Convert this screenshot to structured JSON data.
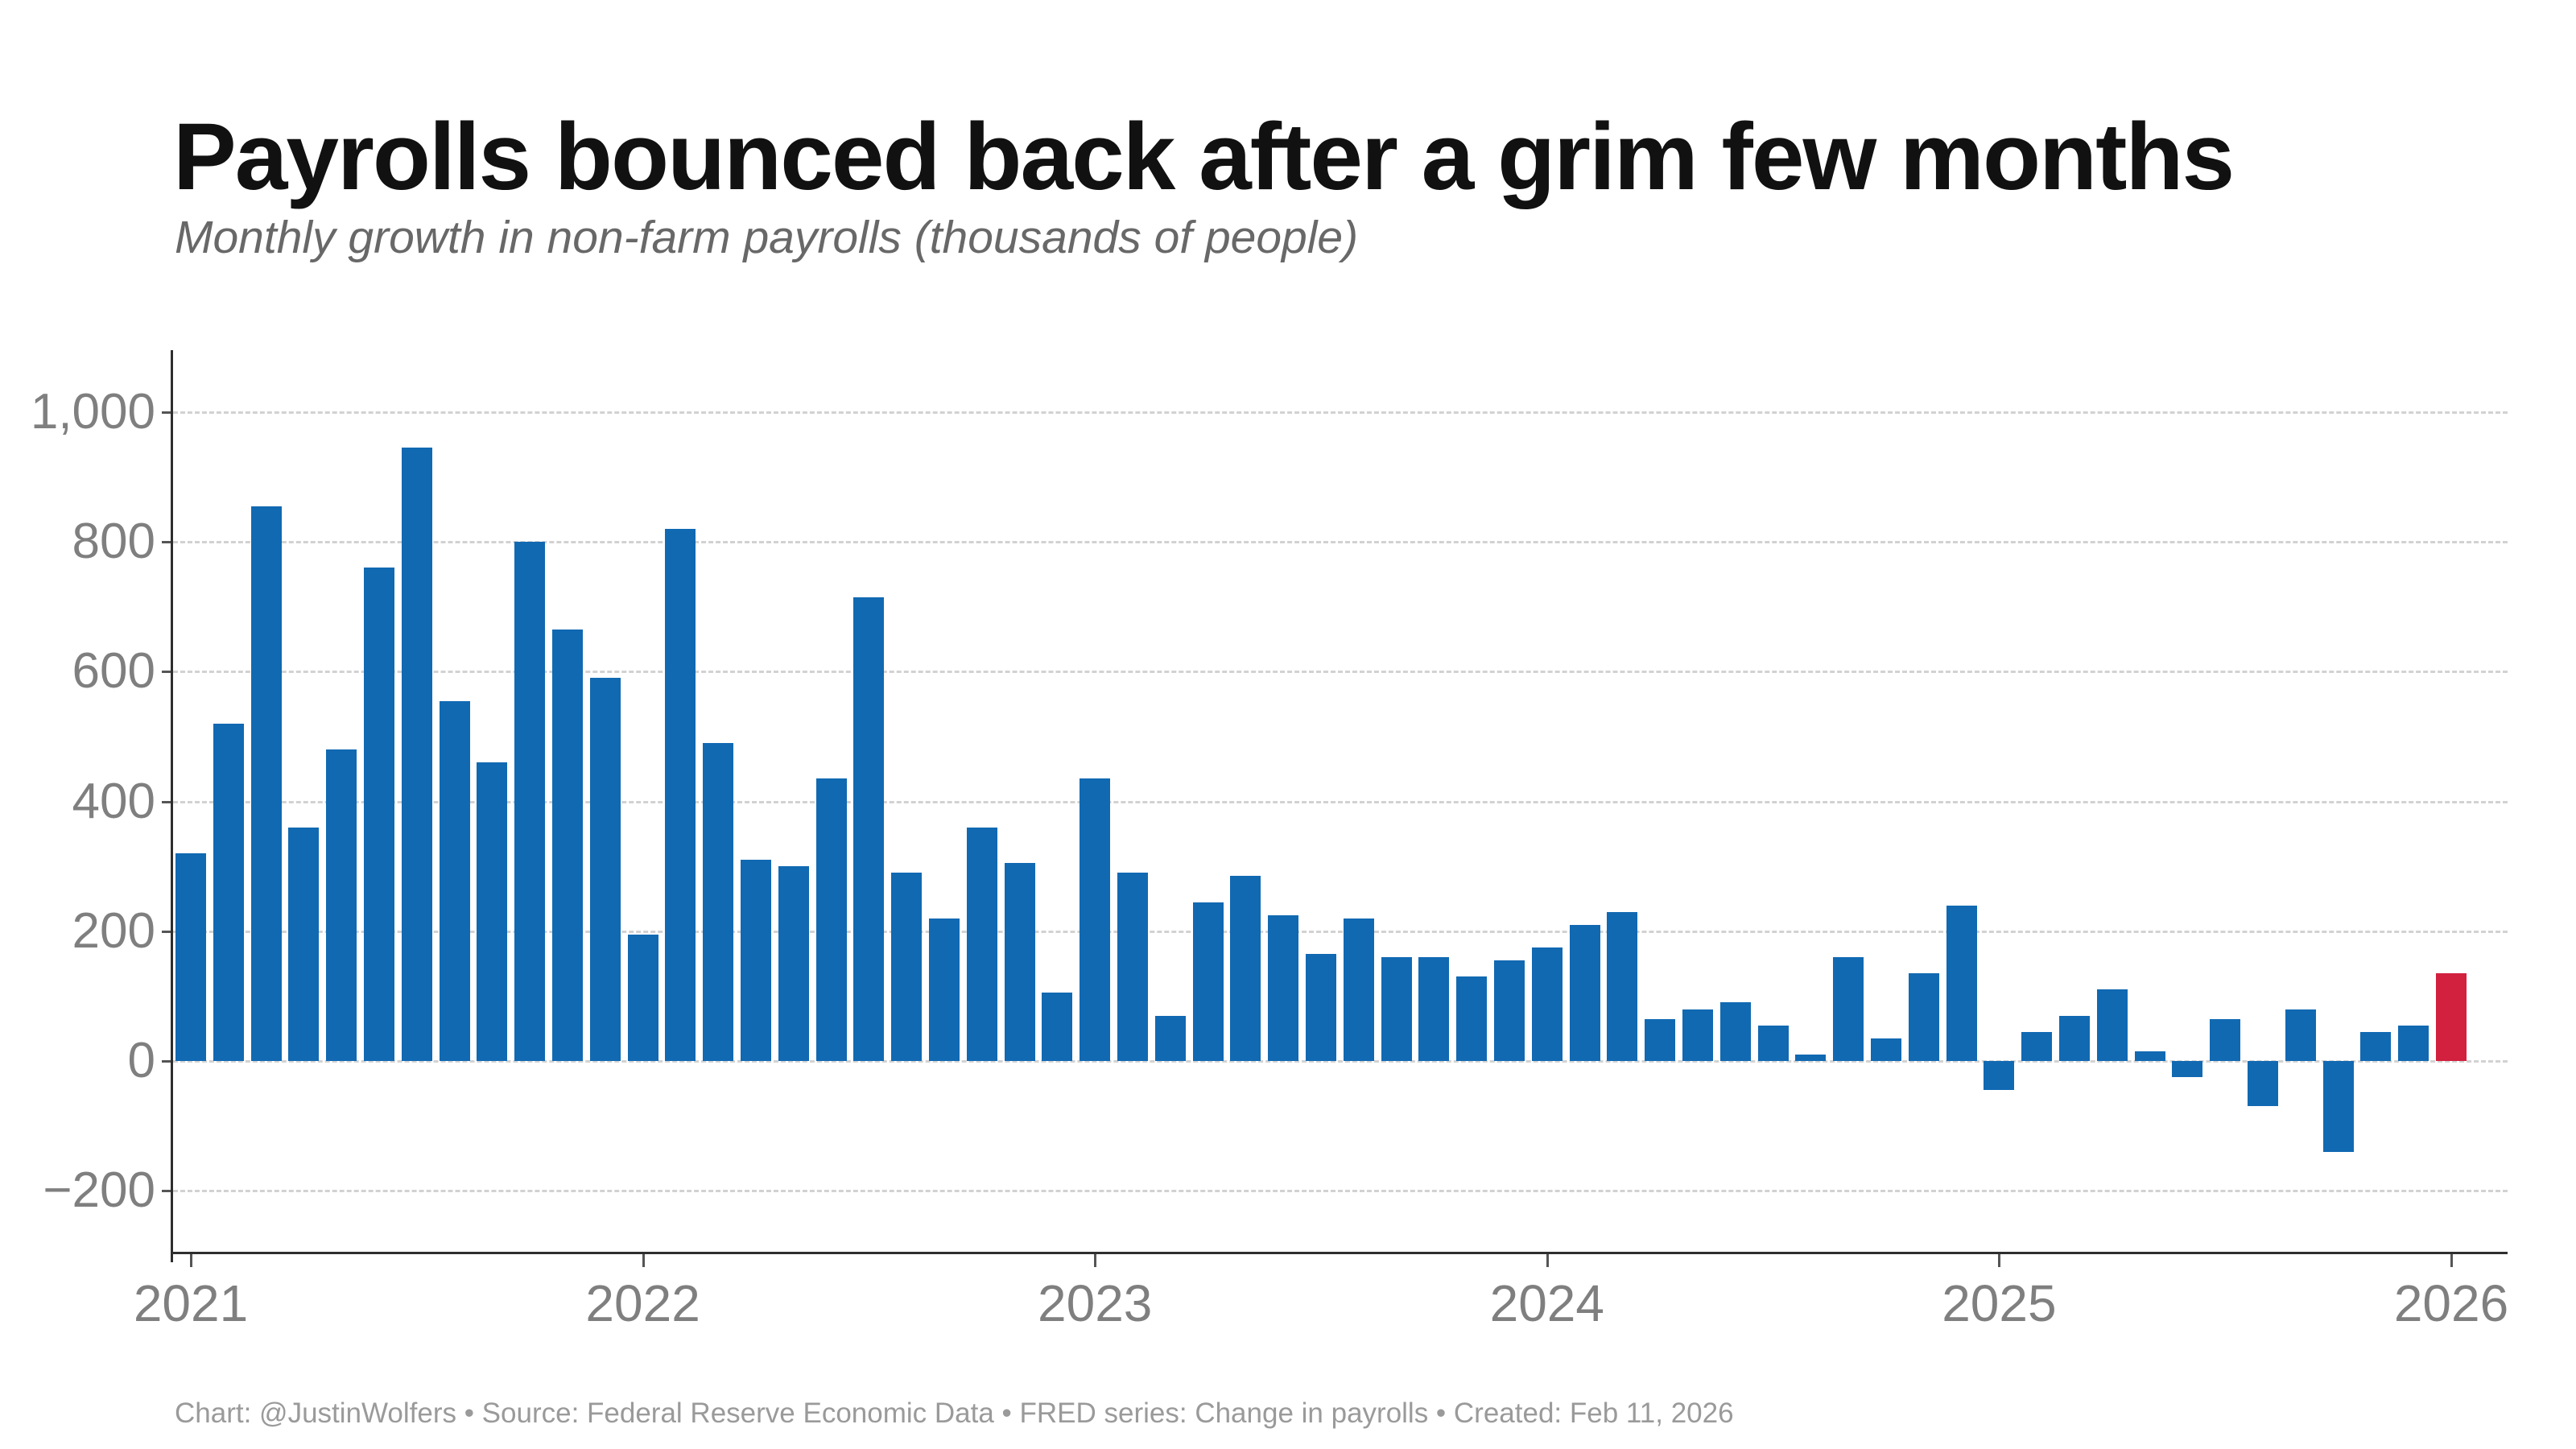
{
  "header": {
    "title": "Payrolls bounced back after a grim few months",
    "subtitle": "Monthly growth in non-farm payrolls (thousands of people)"
  },
  "footer": {
    "credit": "Chart: @JustinWolfers • Source: Federal Reserve Economic Data • FRED series: Change in payrolls • Created: Feb 11, 2026"
  },
  "colors": {
    "bar": "#1169b2",
    "highlight_bar": "#d2203f",
    "axis": "#2e2e2e",
    "tick": "#555555",
    "grid": "#d2d2d2",
    "tick_label": "#7f7f7f"
  },
  "chart_data": {
    "type": "bar",
    "title": "Payrolls bounced back after a grim few months",
    "subtitle": "Monthly growth in non-farm payrolls (thousands of people)",
    "unit": "thousands of people",
    "grid": "on",
    "ylim": [
      -300,
      1095
    ],
    "y_ticks": [
      {
        "label": "1,000",
        "value": 1000
      },
      {
        "label": "800",
        "value": 800
      },
      {
        "label": "600",
        "value": 600
      },
      {
        "label": "400",
        "value": 400
      },
      {
        "label": "200",
        "value": 200
      },
      {
        "label": "0",
        "value": 0
      },
      {
        "label": "−200",
        "value": -200
      }
    ],
    "x_ticks": [
      {
        "label": "2021",
        "year": 2021
      },
      {
        "label": "2022",
        "year": 2022
      },
      {
        "label": "2023",
        "year": 2023
      },
      {
        "label": "2024",
        "year": 2024
      },
      {
        "label": "2025",
        "year": 2025
      },
      {
        "label": "2026",
        "year": 2026
      }
    ],
    "highlight_month": "2026-01",
    "months": [
      "2021-01",
      "2021-02",
      "2021-03",
      "2021-04",
      "2021-05",
      "2021-06",
      "2021-07",
      "2021-08",
      "2021-09",
      "2021-10",
      "2021-11",
      "2021-12",
      "2022-01",
      "2022-02",
      "2022-03",
      "2022-04",
      "2022-05",
      "2022-06",
      "2022-07",
      "2022-08",
      "2022-09",
      "2022-10",
      "2022-11",
      "2022-12",
      "2023-01",
      "2023-02",
      "2023-03",
      "2023-04",
      "2023-05",
      "2023-06",
      "2023-07",
      "2023-08",
      "2023-09",
      "2023-10",
      "2023-11",
      "2023-12",
      "2024-01",
      "2024-02",
      "2024-03",
      "2024-04",
      "2024-05",
      "2024-06",
      "2024-07",
      "2024-08",
      "2024-09",
      "2024-10",
      "2024-11",
      "2024-12",
      "2025-01",
      "2025-02",
      "2025-03",
      "2025-04",
      "2025-05",
      "2025-06",
      "2025-07",
      "2025-08",
      "2025-09",
      "2025-10",
      "2025-11",
      "2025-12",
      "2026-01"
    ],
    "values": [
      320,
      520,
      855,
      360,
      480,
      760,
      945,
      555,
      460,
      800,
      665,
      590,
      195,
      820,
      490,
      310,
      300,
      435,
      715,
      290,
      220,
      360,
      305,
      105,
      435,
      290,
      70,
      245,
      285,
      225,
      165,
      220,
      160,
      160,
      130,
      155,
      175,
      210,
      230,
      65,
      80,
      90,
      55,
      10,
      160,
      35,
      135,
      240,
      -45,
      45,
      70,
      110,
      15,
      -25,
      65,
      -70,
      80,
      -140,
      45,
      55,
      135
    ]
  },
  "layout_note": "values in thousands; last bar (2026-01) highlighted"
}
